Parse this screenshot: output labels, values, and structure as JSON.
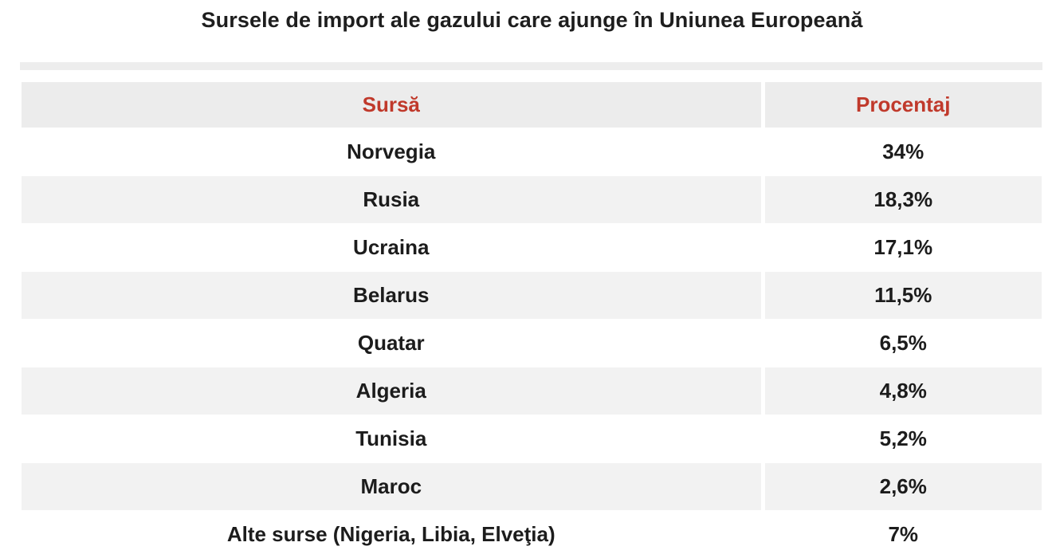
{
  "title": "Sursele de import ale gazului care ajunge în Uniunea Europeană",
  "chart_data": {
    "type": "table",
    "title": "Sursele de import ale gazului care ajunge în Uniunea Europeană",
    "columns": [
      "Sursă",
      "Procentaj"
    ],
    "rows": [
      {
        "source": "Norvegia",
        "percent": "34%"
      },
      {
        "source": "Rusia",
        "percent": "18,3%"
      },
      {
        "source": "Ucraina",
        "percent": "17,1%"
      },
      {
        "source": "Belarus",
        "percent": "11,5%"
      },
      {
        "source": "Quatar",
        "percent": "6,5%"
      },
      {
        "source": "Algeria",
        "percent": "4,8%"
      },
      {
        "source": "Tunisia",
        "percent": "5,2%"
      },
      {
        "source": "Maroc",
        "percent": "2,6%"
      },
      {
        "source": "Alte surse (Nigeria, Libia, Elveţia)",
        "percent": "7%"
      }
    ],
    "values": [
      34,
      18.3,
      17.1,
      11.5,
      6.5,
      4.8,
      5.2,
      2.6,
      7
    ]
  },
  "colors": {
    "header_text": "#c0392b",
    "header_bg": "#ececec",
    "stripe_bg": "#f2f2f2"
  }
}
